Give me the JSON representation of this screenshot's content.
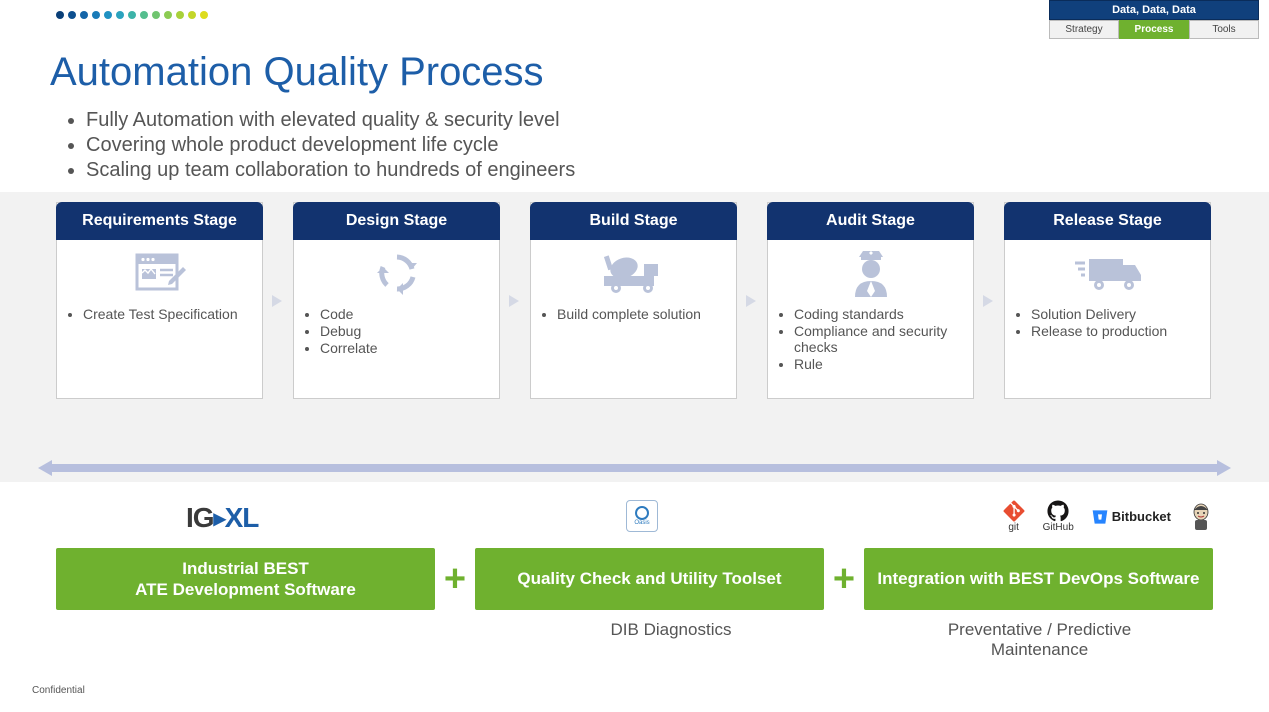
{
  "nav": {
    "header": "Data, Data, Data",
    "tabs": [
      "Strategy",
      "Process",
      "Tools"
    ],
    "active_index": 1
  },
  "dot_colors": [
    "#0a3f78",
    "#0d4f8f",
    "#1465a8",
    "#1a7bb8",
    "#2091c2",
    "#2ba3be",
    "#3cb3a8",
    "#55be8e",
    "#70c570",
    "#8ccb52",
    "#a8d13a",
    "#c3d629",
    "#dddc1e"
  ],
  "title": "Automation Quality Process",
  "bullets": [
    "Fully Automation with elevated quality & security level",
    "Covering whole product development life cycle",
    "Scaling up team collaboration to hundreds of engineers"
  ],
  "stages": [
    {
      "title": "Requirements Stage",
      "icon": "form-edit-icon",
      "items": [
        "Create Test Specification"
      ]
    },
    {
      "title": "Design Stage",
      "icon": "cycle-icon",
      "items": [
        "Code",
        "Debug",
        "Correlate"
      ]
    },
    {
      "title": "Build Stage",
      "icon": "mixer-truck-icon",
      "items": [
        "Build complete solution"
      ]
    },
    {
      "title": "Audit Stage",
      "icon": "officer-icon",
      "items": [
        "Coding standards",
        "Compliance and security checks",
        "Rule"
      ]
    },
    {
      "title": "Release Stage",
      "icon": "delivery-truck-icon",
      "items": [
        "Solution Delivery",
        "Release to production"
      ]
    }
  ],
  "colors": {
    "stage_header_bg": "#12336f",
    "brand_blue": "#1d5ea8",
    "green": "#6fb12f",
    "icon_gray": "#b9c2d9",
    "band_bg": "#f2f2f2",
    "timeline": "#b7bfde"
  },
  "logos": {
    "igxl_ig": "IG",
    "igxl_xl": "XL",
    "oasis": "Oasis",
    "git": "git",
    "github": "GitHub",
    "bitbucket": "Bitbucket"
  },
  "tool_boxes": {
    "b1": "Industrial BEST\nATE Development Software",
    "b2": "Quality Check and Utility Toolset",
    "b3": "Integration with BEST DevOps Software"
  },
  "plus": "+",
  "sub_labels": {
    "s2": "DIB Diagnostics",
    "s3": "Preventative / Predictive\nMaintenance"
  },
  "confidential": "Confidential"
}
